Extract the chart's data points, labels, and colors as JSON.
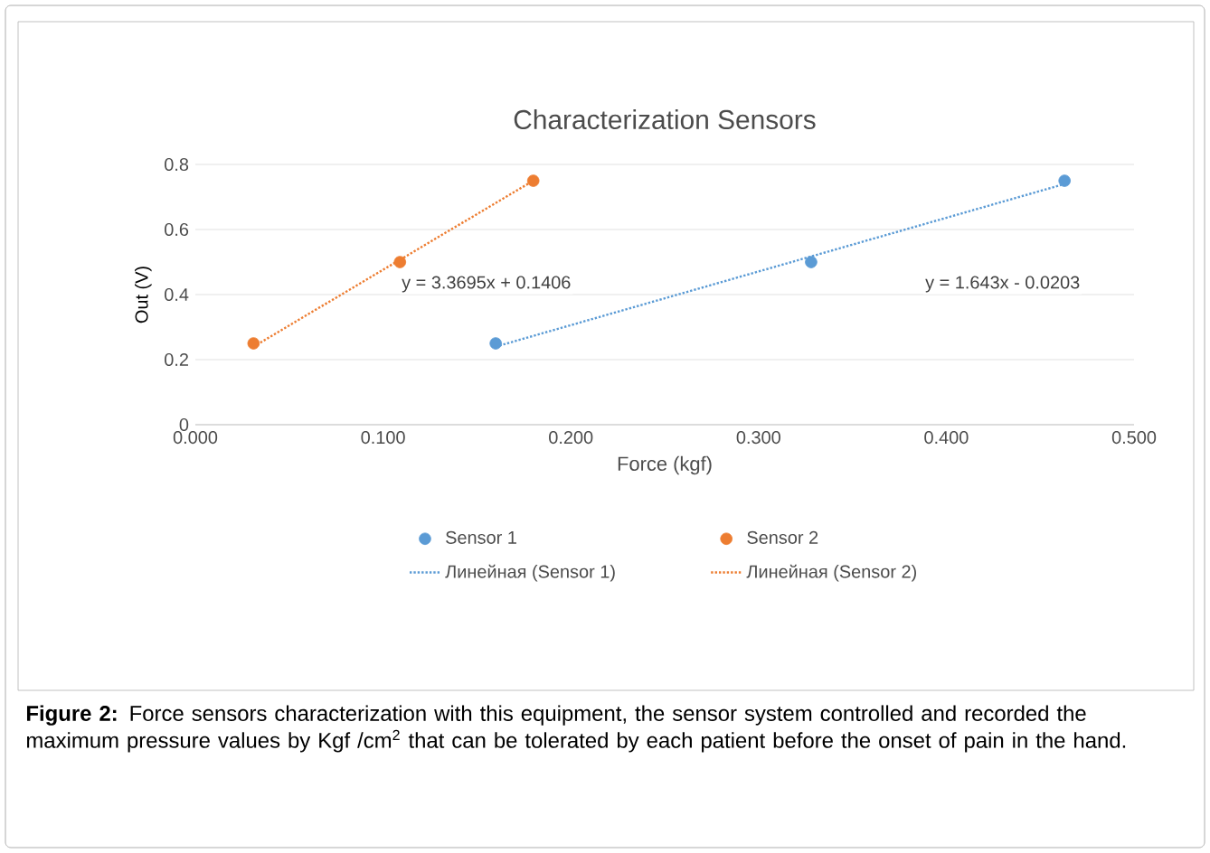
{
  "chart_data": {
    "type": "scatter",
    "title": "Characterization Sensors",
    "xlabel": "Force (kgf)",
    "ylabel": "Out (V)",
    "series": [
      {
        "name": "Sensor 1",
        "color": "#5b9bd5",
        "x": [
          0.16,
          0.328,
          0.463
        ],
        "values": [
          0.25,
          0.5,
          0.75
        ]
      },
      {
        "name": "Sensor 2",
        "color": "#ed7d31",
        "x": [
          0.031,
          0.109,
          0.18
        ],
        "values": [
          0.25,
          0.5,
          0.75
        ]
      },
      {
        "name": "Линейная (Sensor 1)",
        "type": "line",
        "line_style": "dotted",
        "marker": "none",
        "color": "#5b9bd5",
        "x": [
          0.16,
          0.463
        ],
        "values": [
          0.24,
          0.74
        ]
      },
      {
        "name": "Линейная (Sensor 2)",
        "type": "line",
        "line_style": "dotted",
        "marker": "none",
        "color": "#ed7d31",
        "x": [
          0.031,
          0.18
        ],
        "values": [
          0.24,
          0.75
        ]
      }
    ],
    "xlim": [
      0,
      0.5
    ],
    "ylim": [
      0,
      0.8
    ],
    "xticks": [
      {
        "value": 0,
        "label": "0.000"
      },
      {
        "value": 0.1,
        "label": "0.100"
      },
      {
        "value": 0.2,
        "label": "0.200"
      },
      {
        "value": 0.3,
        "label": "0.300"
      },
      {
        "value": 0.4,
        "label": "0.400"
      },
      {
        "value": 0.5,
        "label": "0.500"
      }
    ],
    "yticks": [
      0,
      0.2,
      0.4,
      0.6,
      0.8
    ],
    "grid": "y",
    "legend": "bottom",
    "marker": "circle",
    "annotations": [
      "y = 3.3695x + 0.1406",
      "y = 1.643x - 0.0203",
      "**Figure 2:** Force sensors characterization with this equipment, the sensor system controlled and recorded the maximum pressure values by Kgf /cm$^{2}$ that can be tolerated by each patient before the onset of pain in the hand."
    ]
  }
}
